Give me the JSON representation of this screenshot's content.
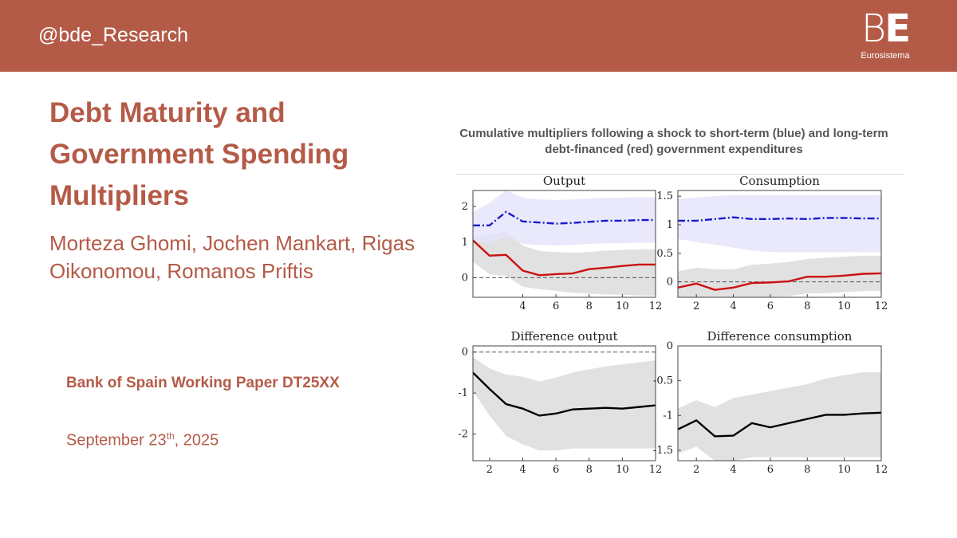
{
  "header": {
    "handle": "@bde_Research",
    "logo_mark_light": "B",
    "logo_mark_bold": "E",
    "logo_text": "Eurosistema"
  },
  "slide": {
    "title": "Debt Maturity and Government Spending Multipliers",
    "authors": "Morteza Ghomi, Jochen Mankart, Rigas Oikonomou, Romanos Priftis",
    "working_paper": "Bank of Spain Working Paper DT25XX",
    "date_prefix": "September 23",
    "date_sup": "th",
    "date_suffix": ", 2025"
  },
  "figure": {
    "caption": "Cumulative multipliers following a shock to short-term (blue) and long-term debt-financed (red) government expenditures"
  },
  "colors": {
    "brand": "#b45b48",
    "short_term": "#1a1acc",
    "long_term": "#cc1111",
    "difference": "#000000",
    "band_blue": "#e3e3fa",
    "band_gray": "#dedede"
  },
  "chart_data": [
    {
      "type": "line",
      "title": "Output",
      "x": [
        1,
        2,
        3,
        4,
        5,
        6,
        7,
        8,
        9,
        10,
        11,
        12
      ],
      "xticks": [
        4,
        6,
        8,
        10,
        12
      ],
      "xlim": [
        1,
        12
      ],
      "ylim": [
        -0.55,
        2.45
      ],
      "yticks": [
        0,
        1,
        2
      ],
      "zero_line": true,
      "series": [
        {
          "color_key": "long_term",
          "style": "solid",
          "values": [
            1.05,
            0.62,
            0.64,
            0.2,
            0.07,
            0.1,
            0.12,
            0.24,
            0.28,
            0.33,
            0.37,
            0.37
          ],
          "band_key": "band_gray",
          "lower": [
            0.45,
            0.1,
            0.05,
            -0.25,
            -0.32,
            -0.37,
            -0.42,
            -0.45,
            -0.47,
            -0.48,
            -0.5,
            -0.5
          ],
          "upper": [
            1.15,
            1.2,
            1.3,
            0.9,
            0.75,
            0.72,
            0.7,
            0.72,
            0.76,
            0.78,
            0.8,
            0.8
          ]
        },
        {
          "color_key": "short_term",
          "style": "dashdot",
          "values": [
            1.47,
            1.47,
            1.85,
            1.58,
            1.55,
            1.52,
            1.54,
            1.57,
            1.6,
            1.6,
            1.62,
            1.62
          ],
          "band_key": "band_blue",
          "lower": [
            1.05,
            0.95,
            1.15,
            0.95,
            0.92,
            0.9,
            0.92,
            0.95,
            0.97,
            0.97,
            0.98,
            0.98
          ],
          "upper": [
            1.85,
            2.1,
            2.45,
            2.25,
            2.2,
            2.18,
            2.2,
            2.22,
            2.25,
            2.25,
            2.26,
            2.26
          ]
        }
      ]
    },
    {
      "type": "line",
      "title": "Consumption",
      "x": [
        1,
        2,
        3,
        4,
        5,
        6,
        7,
        8,
        9,
        10,
        11,
        12
      ],
      "xticks": [
        2,
        4,
        6,
        8,
        10,
        12
      ],
      "xlim": [
        1,
        12
      ],
      "ylim": [
        -0.27,
        1.6
      ],
      "yticks": [
        0,
        0.5,
        1,
        1.5
      ],
      "zero_line": true,
      "series": [
        {
          "color_key": "long_term",
          "style": "solid",
          "values": [
            -0.1,
            -0.03,
            -0.14,
            -0.1,
            -0.02,
            -0.01,
            0.01,
            0.09,
            0.09,
            0.11,
            0.14,
            0.15
          ],
          "band_key": "band_gray",
          "lower": [
            -0.35,
            -0.3,
            -0.33,
            -0.3,
            -0.26,
            -0.26,
            -0.25,
            -0.2,
            -0.2,
            -0.18,
            -0.16,
            -0.16
          ],
          "upper": [
            0.18,
            0.25,
            0.22,
            0.22,
            0.3,
            0.32,
            0.35,
            0.4,
            0.42,
            0.44,
            0.46,
            0.46
          ]
        },
        {
          "color_key": "short_term",
          "style": "dashdot",
          "values": [
            1.07,
            1.07,
            1.1,
            1.13,
            1.1,
            1.1,
            1.11,
            1.1,
            1.12,
            1.12,
            1.11,
            1.11
          ],
          "band_key": "band_blue",
          "lower": [
            0.75,
            0.7,
            0.65,
            0.6,
            0.55,
            0.52,
            0.52,
            0.52,
            0.52,
            0.52,
            0.52,
            0.52
          ],
          "upper": [
            1.45,
            1.48,
            1.5,
            1.52,
            1.52,
            1.52,
            1.52,
            1.52,
            1.52,
            1.52,
            1.52,
            1.52
          ]
        }
      ]
    },
    {
      "type": "line",
      "title": "Difference output",
      "x": [
        1,
        2,
        3,
        4,
        5,
        6,
        7,
        8,
        9,
        10,
        11,
        12
      ],
      "xticks": [
        2,
        4,
        6,
        8,
        10,
        12
      ],
      "xlim": [
        1,
        12
      ],
      "ylim": [
        -2.65,
        0.15
      ],
      "yticks": [
        0,
        -1,
        -2
      ],
      "zero_line": true,
      "series": [
        {
          "color_key": "difference",
          "style": "solid",
          "values": [
            -0.5,
            -0.9,
            -1.27,
            -1.38,
            -1.55,
            -1.5,
            -1.4,
            -1.38,
            -1.36,
            -1.38,
            -1.34,
            -1.3
          ],
          "band_key": "band_gray",
          "lower": [
            -0.95,
            -1.55,
            -2.05,
            -2.25,
            -2.4,
            -2.4,
            -2.35,
            -2.35,
            -2.35,
            -2.35,
            -2.35,
            -2.35
          ],
          "upper": [
            -0.12,
            -0.4,
            -0.55,
            -0.6,
            -0.72,
            -0.62,
            -0.5,
            -0.42,
            -0.35,
            -0.3,
            -0.25,
            -0.2
          ]
        }
      ]
    },
    {
      "type": "line",
      "title": "Difference consumption",
      "x": [
        1,
        2,
        3,
        4,
        5,
        6,
        7,
        8,
        9,
        10,
        11,
        12
      ],
      "xticks": [
        2,
        4,
        6,
        8,
        10,
        12
      ],
      "xlim": [
        1,
        12
      ],
      "ylim": [
        -1.65,
        0
      ],
      "yticks": [
        0,
        -0.5,
        -1,
        -1.5
      ],
      "zero_line": false,
      "series": [
        {
          "color_key": "difference",
          "style": "solid",
          "values": [
            -1.2,
            -1.07,
            -1.3,
            -1.29,
            -1.11,
            -1.17,
            -1.11,
            -1.05,
            -0.99,
            -0.99,
            -0.97,
            -0.96
          ],
          "band_key": "band_gray",
          "lower": [
            -1.55,
            -1.45,
            -1.65,
            -1.65,
            -1.6,
            -1.6,
            -1.6,
            -1.6,
            -1.6,
            -1.6,
            -1.6,
            -1.6
          ],
          "upper": [
            -0.9,
            -0.78,
            -0.88,
            -0.75,
            -0.7,
            -0.65,
            -0.6,
            -0.55,
            -0.47,
            -0.42,
            -0.38,
            -0.38
          ]
        }
      ]
    }
  ]
}
